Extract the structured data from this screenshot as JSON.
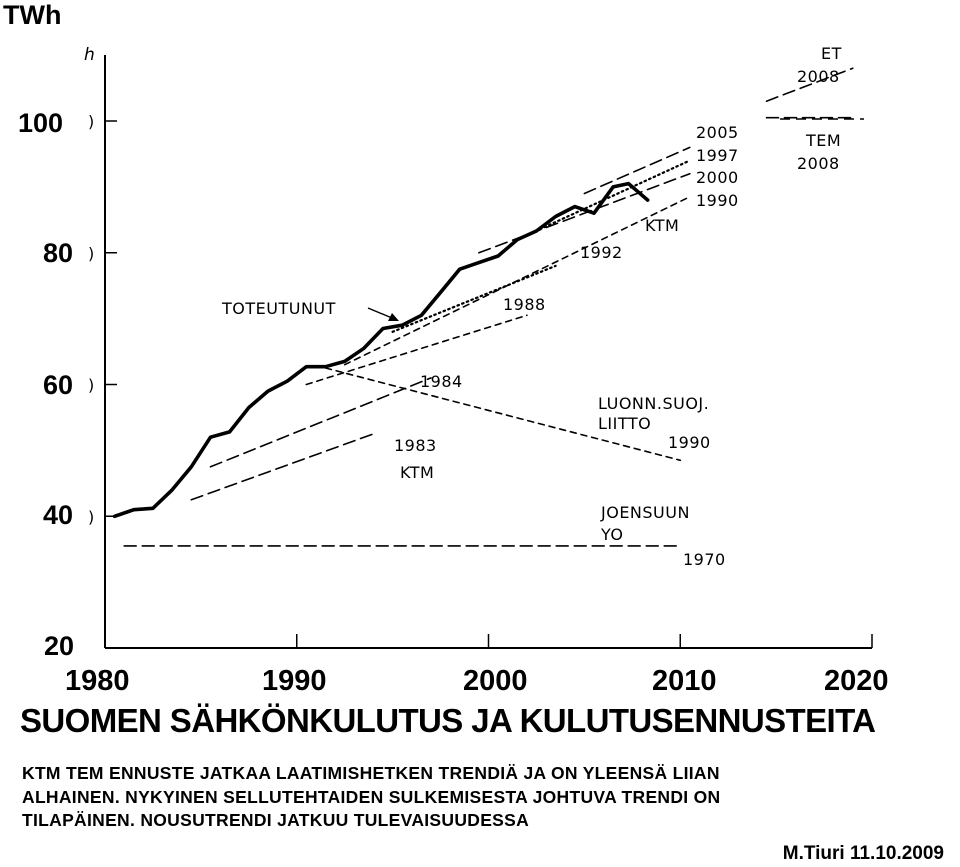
{
  "chart_data": {
    "type": "line",
    "title": "SUOMEN SÄHKÖNKULUTUS JA KULUTUSENNUSTEITA",
    "ylabel": "TWh",
    "xlim": [
      1980,
      2020
    ],
    "ylim": [
      20,
      105
    ],
    "x_ticks": [
      "1980",
      "1990",
      "2000",
      "2010",
      "2020"
    ],
    "y_ticks": [
      "20",
      "40",
      "60",
      "80",
      "100"
    ],
    "series": [
      {
        "name": "TOTEUTUNUT",
        "style": "solid",
        "x": [
          1980.5,
          1981.5,
          1982.5,
          1983.5,
          1984.5,
          1985.5,
          1986.5,
          1987.5,
          1988.5,
          1989.5,
          1990.5,
          1991.5,
          1992.5,
          1993.5,
          1994.5,
          1995.5,
          1996.5,
          1997.5,
          1998.5,
          1999.5,
          2000.5,
          2001.5,
          2002.5,
          2003.5,
          2004.5,
          2005.5,
          2006.5,
          2007.3,
          2008.3
        ],
        "y": [
          40,
          41,
          41.2,
          44,
          47.5,
          52,
          52.8,
          56.5,
          59,
          60.5,
          62.7,
          62.7,
          63.5,
          65.5,
          68.5,
          69,
          70.5,
          74,
          77.5,
          78.5,
          79.5,
          82,
          83.3,
          85.5,
          87,
          86,
          90,
          90.5,
          88
        ]
      },
      {
        "name": "1983 KTM",
        "style": "long-dash",
        "x": [
          1984.5,
          1994
        ],
        "y": [
          42.5,
          52.5
        ]
      },
      {
        "name": "1984",
        "style": "long-dash",
        "x": [
          1985.5,
          1997
        ],
        "y": [
          47.5,
          61
        ]
      },
      {
        "name": "1988",
        "style": "short-dash",
        "x": [
          1990.5,
          2002
        ],
        "y": [
          60,
          70.5
        ]
      },
      {
        "name": "1990 LUONN.SUOJ. LIITTO",
        "style": "short-dash",
        "x": [
          1991.5,
          2010
        ],
        "y": [
          62.5,
          48.5
        ]
      },
      {
        "name": "1992",
        "style": "dotted",
        "x": [
          1995,
          2003.5
        ],
        "y": [
          68,
          78
        ]
      },
      {
        "name": "1990",
        "style": "short-dash",
        "x": [
          1992.5,
          2010.5
        ],
        "y": [
          63,
          88.5
        ]
      },
      {
        "name": "2000",
        "style": "long-dash",
        "x": [
          1999.5,
          2010.5
        ],
        "y": [
          80,
          92
        ]
      },
      {
        "name": "1997",
        "style": "dotted",
        "x": [
          2001.5,
          2010.5
        ],
        "y": [
          82,
          94
        ]
      },
      {
        "name": "2005",
        "style": "long-dash",
        "x": [
          2005,
          2010.5
        ],
        "y": [
          89,
          96
        ]
      },
      {
        "name": "1970 JOENSUUN YO",
        "style": "long-dash",
        "x": [
          1981,
          2010
        ],
        "y": [
          35.5,
          35.5
        ]
      },
      {
        "name": "ET 2008",
        "style": "long-dash",
        "x": [
          2014.5,
          2019
        ],
        "y": [
          103,
          108
        ]
      },
      {
        "name": "TEM 2008",
        "style": "long-dash",
        "x": [
          2014.5,
          2019
        ],
        "y": [
          100.5,
          100.5
        ]
      }
    ]
  },
  "labels": {
    "unit_top": "TWh",
    "axis_artifact": "h",
    "toteutunut": "TOTEUTUNUT",
    "ktm_label": "KTM",
    "y1992": "1992",
    "y1988": "1988",
    "y1984": "1984",
    "y1983": "1983",
    "ktm_1983": "KTM",
    "luonn_line1": "LUONN.SUOJ.",
    "luonn_line2": "LIITTO",
    "luonn_year": "1990",
    "joensuu_line1": "JOENSUUN",
    "joensuu_line2": "YO",
    "joensuu_year": "1970",
    "y2005": "2005",
    "y1997": "1997",
    "y2000": "2000",
    "y1990": "1990",
    "et": "ET",
    "et_year": "2008",
    "tem": "TEM",
    "tem_year": "2008"
  },
  "caption": {
    "line1": "KTM TEM ENNUSTE JATKAA LAATIMISHETKEN TRENDIÄ JA ON  YLEENSÄ LIIAN",
    "line2": "ALHAINEN.  NYKYINEN SELLUTEHTAIDEN SULKEMISESTA JOHTUVA TRENDI ON",
    "line3": "TILAPÄINEN. NOUSUTRENDI JATKUU TULEVAISUUDESSA"
  },
  "author": "M.Tiuri 11.10.2009"
}
